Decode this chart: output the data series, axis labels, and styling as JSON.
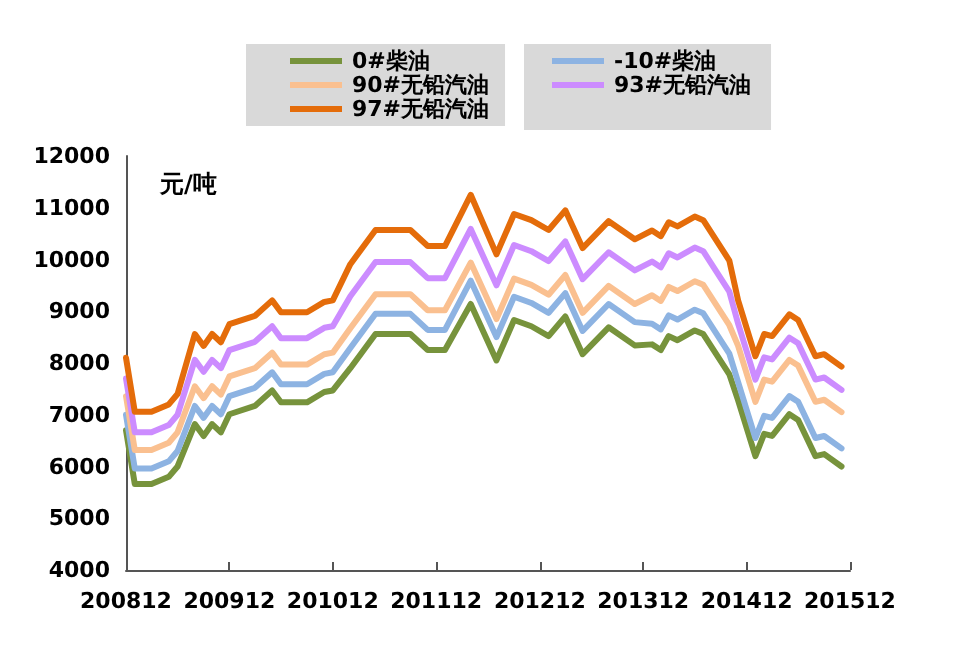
{
  "chart_data": {
    "type": "line",
    "ylabel": "元/吨",
    "x": [
      "2008-12",
      "2009-01",
      "2009-03",
      "2009-05",
      "2009-06",
      "2009-08",
      "2009-09",
      "2009-10",
      "2009-11",
      "2009-12",
      "2010-03",
      "2010-05",
      "2010-06",
      "2010-09",
      "2010-11",
      "2010-12",
      "2011-02",
      "2011-05",
      "2011-09",
      "2011-11",
      "2012-01",
      "2012-04",
      "2012-07",
      "2012-09",
      "2012-11",
      "2013-01",
      "2013-03",
      "2013-05",
      "2013-08",
      "2013-11",
      "2014-01",
      "2014-02",
      "2014-03",
      "2014-04",
      "2014-06",
      "2014-07",
      "2014-10",
      "2014-11",
      "2015-01",
      "2015-02",
      "2015-03",
      "2015-05",
      "2015-06",
      "2015-08",
      "2015-09",
      "2015-11"
    ],
    "series": [
      {
        "name": "0#柴油",
        "color": "#77933c",
        "values": [
          6700,
          5660,
          5660,
          5800,
          6000,
          6820,
          6590,
          6820,
          6660,
          7010,
          7170,
          7470,
          7240,
          7240,
          7440,
          7470,
          7900,
          8560,
          8560,
          8250,
          8250,
          9140,
          8050,
          8830,
          8710,
          8520,
          8900,
          8170,
          8690,
          8340,
          8360,
          8250,
          8520,
          8440,
          8630,
          8560,
          7780,
          7280,
          6200,
          6630,
          6590,
          7010,
          6900,
          6200,
          6240,
          6000
        ]
      },
      {
        "name": "-10#柴油",
        "color": "#8db3e2",
        "values": [
          7000,
          5960,
          5960,
          6100,
          6300,
          7170,
          6940,
          7170,
          7010,
          7360,
          7520,
          7820,
          7590,
          7590,
          7790,
          7820,
          8290,
          8950,
          8950,
          8640,
          8640,
          9590,
          8500,
          9280,
          9160,
          8970,
          9350,
          8620,
          9140,
          8790,
          8760,
          8650,
          8920,
          8840,
          9030,
          8960,
          8180,
          7630,
          6550,
          6980,
          6940,
          7360,
          7250,
          6550,
          6590,
          6350
        ]
      },
      {
        "name": "90#无铅汽油",
        "color": "#fac090",
        "values": [
          7360,
          6320,
          6320,
          6460,
          6660,
          7550,
          7320,
          7550,
          7390,
          7740,
          7900,
          8200,
          7970,
          7970,
          8170,
          8200,
          8670,
          9330,
          9330,
          9020,
          9020,
          9940,
          8850,
          9630,
          9510,
          9320,
          9700,
          8970,
          9490,
          9140,
          9310,
          9200,
          9470,
          9390,
          9580,
          9510,
          8730,
          8330,
          7250,
          7680,
          7640,
          8060,
          7950,
          7250,
          7290,
          7050
        ]
      },
      {
        "name": "93#无铅汽油",
        "color": "#cc8cff",
        "values": [
          7700,
          6660,
          6660,
          6800,
          7000,
          8060,
          7830,
          8060,
          7900,
          8250,
          8410,
          8710,
          8480,
          8480,
          8680,
          8710,
          9290,
          9950,
          9950,
          9640,
          9640,
          10590,
          9500,
          10280,
          10160,
          9970,
          10350,
          9620,
          10140,
          9790,
          9960,
          9850,
          10120,
          10040,
          10230,
          10160,
          9380,
          8760,
          7680,
          8110,
          8070,
          8490,
          8380,
          7680,
          7720,
          7480
        ]
      },
      {
        "name": "97#无铅汽油",
        "color": "#e46c0a",
        "values": [
          8100,
          7060,
          7060,
          7200,
          7400,
          8560,
          8330,
          8560,
          8400,
          8750,
          8910,
          9210,
          8980,
          8980,
          9180,
          9210,
          9910,
          10570,
          10570,
          10260,
          10260,
          11250,
          10100,
          10880,
          10760,
          10570,
          10950,
          10220,
          10740,
          10390,
          10560,
          10450,
          10720,
          10640,
          10830,
          10760,
          9980,
          9210,
          8130,
          8560,
          8520,
          8940,
          8830,
          8130,
          8170,
          7930
        ]
      }
    ],
    "xlim": [
      "2008-12",
      "2015-12"
    ],
    "xticks": [
      {
        "value": "2008-12",
        "label": "200812"
      },
      {
        "value": "2009-12",
        "label": "200912"
      },
      {
        "value": "2010-12",
        "label": "201012"
      },
      {
        "value": "2011-12",
        "label": "201112"
      },
      {
        "value": "2012-12",
        "label": "201212"
      },
      {
        "value": "2013-12",
        "label": "201312"
      },
      {
        "value": "2014-12",
        "label": "201412"
      },
      {
        "value": "2015-12",
        "label": "201512"
      }
    ],
    "ylim": [
      4000,
      12000
    ],
    "yticks": [
      4000,
      5000,
      6000,
      7000,
      8000,
      9000,
      10000,
      11000,
      12000
    ],
    "grid": false,
    "legend": "top",
    "marker": "none",
    "line_style": "solid"
  }
}
